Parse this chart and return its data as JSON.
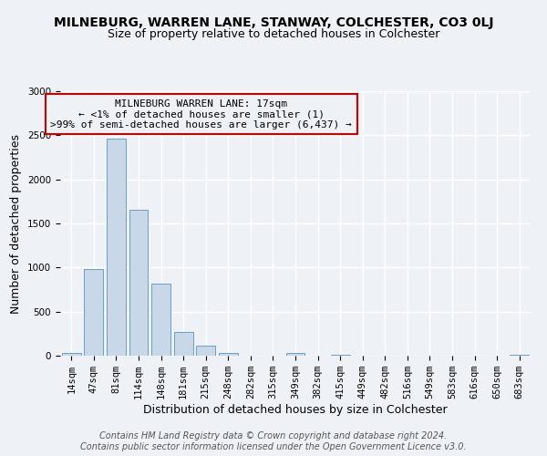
{
  "title": "MILNEBURG, WARREN LANE, STANWAY, COLCHESTER, CO3 0LJ",
  "subtitle": "Size of property relative to detached houses in Colchester",
  "xlabel": "Distribution of detached houses by size in Colchester",
  "ylabel": "Number of detached properties",
  "bar_labels": [
    "14sqm",
    "47sqm",
    "81sqm",
    "114sqm",
    "148sqm",
    "181sqm",
    "215sqm",
    "248sqm",
    "282sqm",
    "315sqm",
    "349sqm",
    "382sqm",
    "415sqm",
    "449sqm",
    "482sqm",
    "516sqm",
    "549sqm",
    "583sqm",
    "616sqm",
    "650sqm",
    "683sqm"
  ],
  "bar_values": [
    30,
    980,
    2460,
    1660,
    820,
    270,
    115,
    35,
    0,
    0,
    30,
    0,
    15,
    0,
    0,
    0,
    0,
    0,
    0,
    0,
    15
  ],
  "bar_color": "#c8d8e8",
  "bar_edge_color": "#6a9fc0",
  "ylim": [
    0,
    3000
  ],
  "yticks": [
    0,
    500,
    1000,
    1500,
    2000,
    2500,
    3000
  ],
  "annotation_box_text_line1": "MILNEBURG WARREN LANE: 17sqm",
  "annotation_box_text_line2": "← <1% of detached houses are smaller (1)",
  "annotation_box_text_line3": ">99% of semi-detached houses are larger (6,437) →",
  "annotation_box_color": "#cc0000",
  "footer_line1": "Contains HM Land Registry data © Crown copyright and database right 2024.",
  "footer_line2": "Contains public sector information licensed under the Open Government Licence v3.0.",
  "background_color": "#eef2f7",
  "grid_color": "#ffffff",
  "title_fontsize": 10,
  "subtitle_fontsize": 9,
  "axis_label_fontsize": 9,
  "tick_fontsize": 7.5,
  "annotation_fontsize": 8,
  "footer_fontsize": 7
}
